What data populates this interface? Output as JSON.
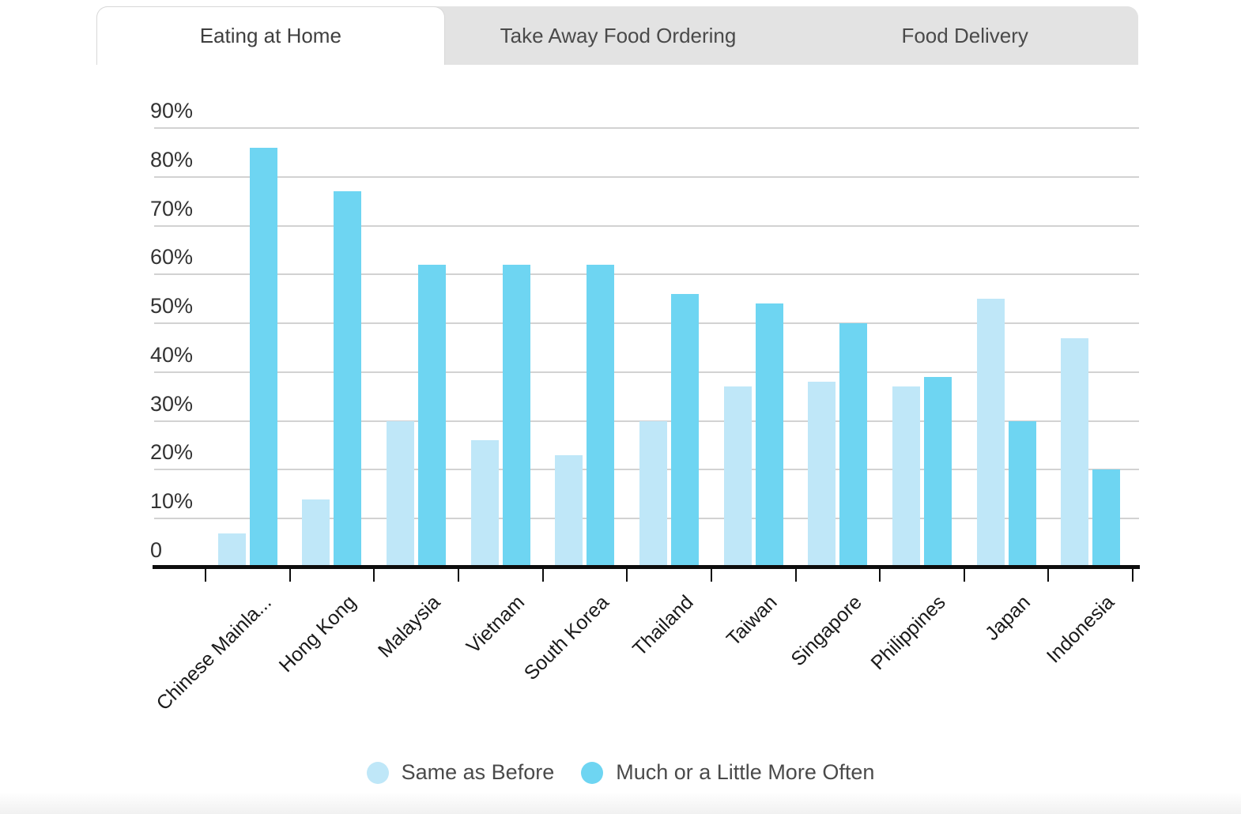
{
  "tabs": {
    "items": [
      {
        "label": "Eating at Home",
        "active": true
      },
      {
        "label": "Take Away Food Ordering",
        "active": false
      },
      {
        "label": "Food Delivery",
        "active": false
      }
    ]
  },
  "legend": {
    "items": [
      {
        "label": "Same as Before",
        "color": "#bfe7f8"
      },
      {
        "label": "Much or a Little More Often",
        "color": "#6ed5f2"
      }
    ]
  },
  "colors": {
    "bar_light": "#bfe7f8",
    "bar_dark": "#6ed5f2",
    "gridline": "#d2d2d2",
    "axis": "#0d0d0d",
    "tab_background": "#e3e3e3"
  },
  "chart_data": {
    "type": "bar",
    "categories": [
      "Chinese Mainla...",
      "Hong Kong",
      "Malaysia",
      "Vietnam",
      "South Korea",
      "Thailand",
      "Taiwan",
      "Singapore",
      "Philippines",
      "Japan",
      "Indonesia"
    ],
    "series": [
      {
        "name": "Same as Before",
        "color": "#bfe7f8",
        "values": [
          7,
          14,
          30,
          26,
          23,
          30,
          37,
          38,
          37,
          55,
          47
        ]
      },
      {
        "name": "Much or a Little More Often",
        "color": "#6ed5f2",
        "values": [
          86,
          77,
          62,
          62,
          62,
          56,
          54,
          50,
          39,
          30,
          20
        ]
      }
    ],
    "title": "",
    "xlabel": "",
    "ylabel": "",
    "ylim": [
      0,
      90
    ],
    "ytick_labels": [
      "90%",
      "80%",
      "70%",
      "60%",
      "50%",
      "40%",
      "30%",
      "20%",
      "10%",
      "0"
    ],
    "grid": true,
    "legend_position": "bottom"
  }
}
